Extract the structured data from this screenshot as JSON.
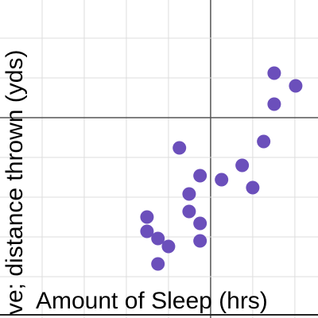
{
  "chart_data": {
    "type": "scatter",
    "x_label": "Amount of Sleep (hrs)",
    "y_label": "ve; distance thrown (yds)",
    "color": "#6b4fbb",
    "x": [
      1.51,
      2.02,
      1.51,
      1.26,
      -0.74,
      0.75,
      0.26,
      -0.25,
      1.0,
      -0.51,
      -0.51,
      -0.25,
      -1.51,
      -1.51,
      -1.25,
      -1.0,
      -0.25,
      -1.25
    ],
    "values": [
      1.12,
      0.8,
      0.34,
      -0.6,
      -0.76,
      -1.2,
      -1.56,
      -1.46,
      -1.76,
      -1.92,
      -2.36,
      -2.66,
      -2.5,
      -2.86,
      -3.04,
      -3.24,
      -3.1,
      -3.68
    ],
    "xlim": [
      -5,
      2.55
    ],
    "ylim": [
      -5.04,
      2.96
    ],
    "xticks": [
      -4,
      -3,
      -2,
      -1,
      0,
      1,
      2
    ],
    "yticks": [
      -4,
      -3,
      -2,
      -1,
      0,
      1,
      2
    ],
    "grid": true
  }
}
